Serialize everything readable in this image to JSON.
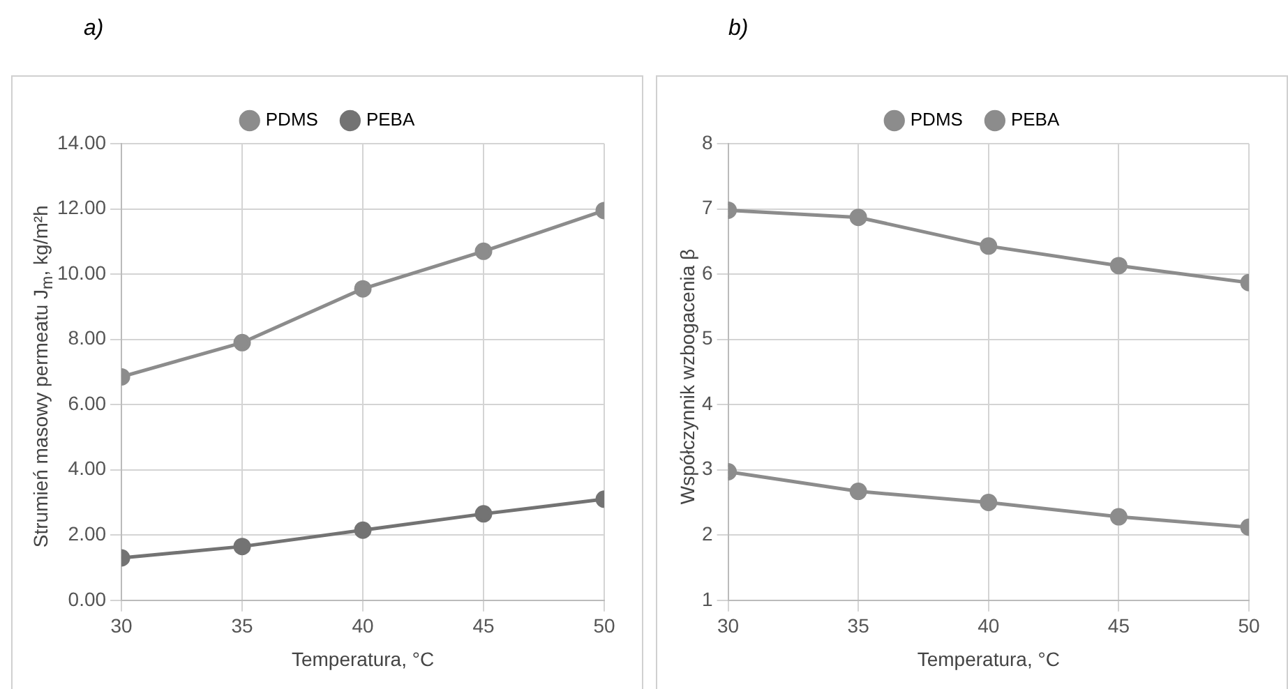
{
  "chart_data": [
    {
      "type": "line",
      "title": "a)",
      "xlabel": "Temperatura, °C",
      "ylabel": "Strumień masowy permeatu J$_{m}$, kg/m²h",
      "x": [
        30,
        35,
        40,
        45,
        50
      ],
      "xlim": [
        30,
        50
      ],
      "xticks": [
        30,
        35,
        40,
        45,
        50
      ],
      "ylim": [
        0,
        14
      ],
      "yticks": [
        {
          "value": 0,
          "label": "0.00"
        },
        {
          "value": 2,
          "label": "2.00"
        },
        {
          "value": 4,
          "label": "4.00"
        },
        {
          "value": 6,
          "label": "6.00"
        },
        {
          "value": 8,
          "label": "8.00"
        },
        {
          "value": 10,
          "label": "10.00"
        },
        {
          "value": 12,
          "label": "12.00"
        },
        {
          "value": 14,
          "label": "14.00"
        }
      ],
      "grid": true,
      "legend": "top",
      "marker": "circle",
      "line_style": "solid",
      "series": [
        {
          "name": "PDMS",
          "color": "#8c8c8c",
          "values": [
            6.85,
            7.9,
            9.55,
            10.7,
            11.95
          ]
        },
        {
          "name": "PEBA",
          "color": "#737373",
          "values": [
            1.3,
            1.65,
            2.15,
            2.65,
            3.1
          ]
        }
      ]
    },
    {
      "type": "line",
      "title": "b)",
      "xlabel": "Temperatura, °C",
      "ylabel": "Współczynnik wzbogacenia β",
      "x": [
        30,
        35,
        40,
        45,
        50
      ],
      "xlim": [
        30,
        50
      ],
      "xticks": [
        30,
        35,
        40,
        45,
        50
      ],
      "ylim": [
        1,
        8
      ],
      "yticks": [
        1,
        2,
        3,
        4,
        5,
        6,
        7,
        8
      ],
      "grid": true,
      "legend": "top",
      "marker": "circle",
      "line_style": "solid",
      "series": [
        {
          "name": "PDMS",
          "color": "#8c8c8c",
          "values": [
            6.98,
            6.87,
            6.43,
            6.13,
            5.87
          ]
        },
        {
          "name": "PEBA",
          "color": "#8c8c8c",
          "values": [
            2.97,
            2.67,
            2.5,
            2.28,
            2.12
          ]
        }
      ]
    }
  ]
}
